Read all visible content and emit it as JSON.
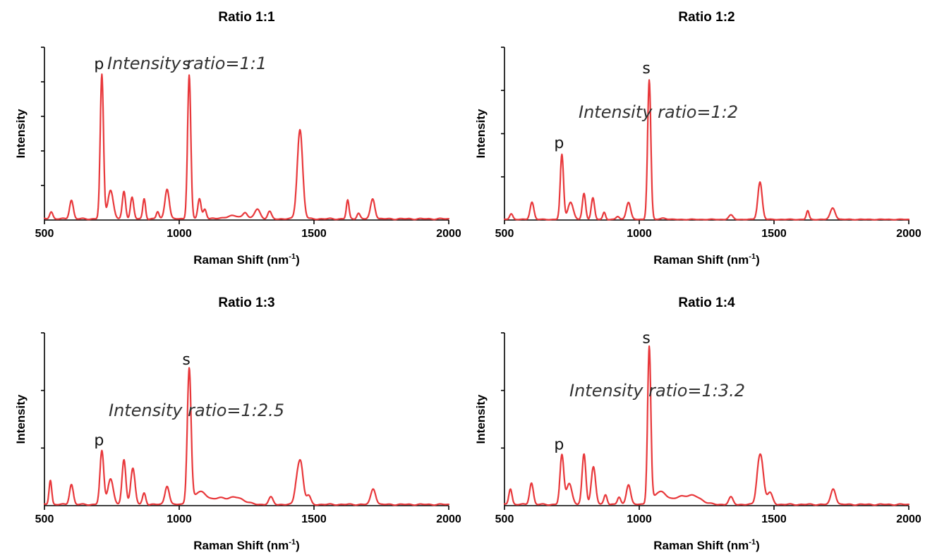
{
  "colors": {
    "series": "#e8383b",
    "axis": "#000000"
  },
  "chart_data": [
    {
      "type": "line",
      "title": "Ratio 1:1",
      "xlabel": "Raman Shift (nm",
      "xlabel_sup": "-1",
      "xlabel_suffix": ")",
      "ylabel": "Intensity",
      "xlim": [
        500,
        2000
      ],
      "ylim": [
        0,
        1.2
      ],
      "xticks": [
        500,
        1000,
        1500,
        2000
      ],
      "ytick_count": 5,
      "annotation": "Intensity ratio=1:1",
      "peak_labels": [
        {
          "text": "p",
          "x": 713,
          "y": 1.0
        },
        {
          "text": "s",
          "x": 1037,
          "y": 1.0
        }
      ],
      "peaks": [
        [
          525,
          0.05,
          6
        ],
        [
          600,
          0.13,
          7
        ],
        [
          713,
          1.0,
          6
        ],
        [
          745,
          0.2,
          10
        ],
        [
          795,
          0.19,
          6
        ],
        [
          825,
          0.15,
          6
        ],
        [
          870,
          0.14,
          5
        ],
        [
          920,
          0.05,
          5
        ],
        [
          955,
          0.21,
          8
        ],
        [
          1037,
          1.0,
          6
        ],
        [
          1075,
          0.14,
          6
        ],
        [
          1095,
          0.07,
          6
        ],
        [
          1200,
          0.02,
          30
        ],
        [
          1245,
          0.04,
          8
        ],
        [
          1290,
          0.07,
          10
        ],
        [
          1335,
          0.05,
          7
        ],
        [
          1448,
          0.62,
          10
        ],
        [
          1625,
          0.13,
          5
        ],
        [
          1665,
          0.04,
          6
        ],
        [
          1718,
          0.14,
          8
        ]
      ],
      "baseline": 0.008
    },
    {
      "type": "line",
      "title": "Ratio 1:2",
      "xlabel": "Raman Shift (nm",
      "xlabel_sup": "-1",
      "xlabel_suffix": ")",
      "ylabel": "Intensity",
      "xlim": [
        500,
        2000
      ],
      "ylim": [
        0,
        1.2
      ],
      "xticks": [
        500,
        1000,
        1500,
        2000
      ],
      "ytick_count": 4,
      "annotation": "Intensity ratio=1:2",
      "peak_labels": [
        {
          "text": "p",
          "x": 713,
          "y": 0.45
        },
        {
          "text": "s",
          "x": 1037,
          "y": 0.97
        }
      ],
      "peaks": [
        [
          525,
          0.04,
          6
        ],
        [
          602,
          0.12,
          7
        ],
        [
          713,
          0.45,
          6
        ],
        [
          745,
          0.12,
          10
        ],
        [
          795,
          0.18,
          6
        ],
        [
          828,
          0.15,
          6
        ],
        [
          870,
          0.05,
          5
        ],
        [
          920,
          0.02,
          6
        ],
        [
          960,
          0.12,
          8
        ],
        [
          1037,
          0.97,
          6
        ],
        [
          1090,
          0.01,
          10
        ],
        [
          1340,
          0.03,
          8
        ],
        [
          1448,
          0.26,
          8
        ],
        [
          1625,
          0.06,
          5
        ],
        [
          1718,
          0.08,
          9
        ]
      ],
      "baseline": 0.004
    },
    {
      "type": "line",
      "title": "Ratio 1:3",
      "xlabel": "Raman Shift (nm",
      "xlabel_sup": "-1",
      "xlabel_suffix": ")",
      "ylabel": "Intensity",
      "xlim": [
        500,
        2000
      ],
      "ylim": [
        0,
        1.2
      ],
      "xticks": [
        500,
        1000,
        1500,
        2000
      ],
      "ytick_count": 3,
      "annotation": "Intensity ratio=1:2.5",
      "peak_labels": [
        {
          "text": "p",
          "x": 713,
          "y": 0.37
        },
        {
          "text": "s",
          "x": 1037,
          "y": 0.93
        }
      ],
      "peaks": [
        [
          522,
          0.17,
          5
        ],
        [
          600,
          0.14,
          7
        ],
        [
          713,
          0.37,
          7
        ],
        [
          745,
          0.18,
          10
        ],
        [
          795,
          0.31,
          7
        ],
        [
          828,
          0.25,
          8
        ],
        [
          870,
          0.08,
          6
        ],
        [
          955,
          0.13,
          8
        ],
        [
          1037,
          0.93,
          7
        ],
        [
          1080,
          0.09,
          25
        ],
        [
          1150,
          0.04,
          20
        ],
        [
          1210,
          0.05,
          30
        ],
        [
          1340,
          0.05,
          8
        ],
        [
          1435,
          0.1,
          8
        ],
        [
          1450,
          0.29,
          10
        ],
        [
          1480,
          0.06,
          8
        ],
        [
          1720,
          0.11,
          9
        ]
      ],
      "baseline": 0.008
    },
    {
      "type": "line",
      "title": "Ratio 1:4",
      "xlabel": "Raman Shift (nm",
      "xlabel_sup": "-1",
      "xlabel_suffix": ")",
      "ylabel": "Intensity",
      "xlim": [
        500,
        2000
      ],
      "ylim": [
        0,
        1.2
      ],
      "xticks": [
        500,
        1000,
        1500,
        2000
      ],
      "ytick_count": 3,
      "annotation": "Intensity ratio=1:3.2",
      "peak_labels": [
        {
          "text": "p",
          "x": 713,
          "y": 0.34
        },
        {
          "text": "s",
          "x": 1037,
          "y": 1.08
        }
      ],
      "peaks": [
        [
          522,
          0.11,
          6
        ],
        [
          600,
          0.15,
          7
        ],
        [
          713,
          0.34,
          7
        ],
        [
          740,
          0.15,
          10
        ],
        [
          795,
          0.35,
          7
        ],
        [
          830,
          0.26,
          8
        ],
        [
          875,
          0.07,
          6
        ],
        [
          925,
          0.05,
          6
        ],
        [
          960,
          0.14,
          8
        ],
        [
          1037,
          1.08,
          6
        ],
        [
          1080,
          0.09,
          25
        ],
        [
          1150,
          0.04,
          20
        ],
        [
          1200,
          0.06,
          30
        ],
        [
          1340,
          0.05,
          8
        ],
        [
          1440,
          0.12,
          8
        ],
        [
          1452,
          0.3,
          10
        ],
        [
          1485,
          0.08,
          10
        ],
        [
          1720,
          0.11,
          9
        ]
      ],
      "baseline": 0.008
    }
  ]
}
